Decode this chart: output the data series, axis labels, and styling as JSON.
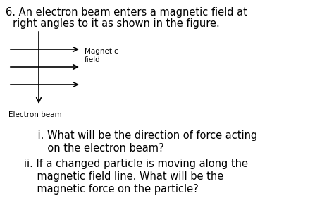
{
  "background_color": "#ffffff",
  "text_color": "#000000",
  "arrow_color": "#000000",
  "title_line1": "6. An electron beam enters a magnetic field at",
  "title_line2": "right angles to it as shown in the figure.",
  "label_magnetic": "Magnetic\nfield",
  "label_electron": "Electron beam",
  "qi_line1": "    i. What will be the direction of force acting",
  "qi_line2": "       on the electron beam?",
  "qii_line1": "   ii. If a changed particle is moving along the",
  "qii_line2": "       magnetic field line. What will be the",
  "qii_line3": "       magnetic force on the particle?",
  "font_size_title": 10.5,
  "font_size_body": 10.5,
  "font_size_label": 7.5,
  "font_size_small_label": 7.5
}
